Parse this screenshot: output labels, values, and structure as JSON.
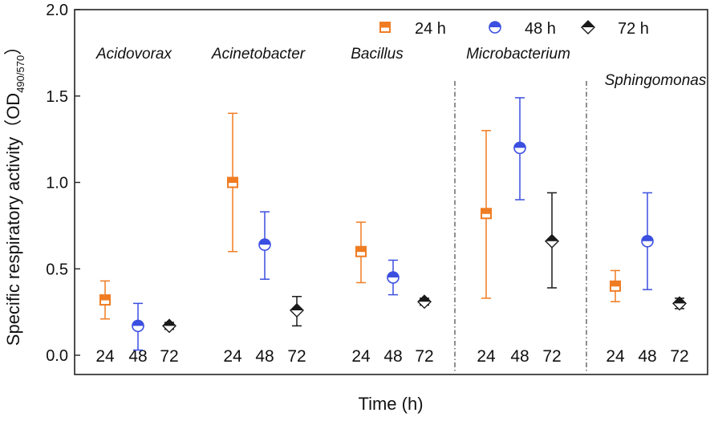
{
  "chart_data": {
    "type": "scatter",
    "ylabel": "Specific respiratory activity（OD",
    "ylabel_sub": "490/570",
    "ylabel_close": "）",
    "xlabel": "Time (h)",
    "ylim": [
      0,
      2.0
    ],
    "yticks": [
      "0.0",
      "0.5",
      "1.0",
      "1.5",
      "2.0"
    ],
    "legend": [
      {
        "name": "24 h",
        "color": "#f07c22",
        "marker": "square"
      },
      {
        "name": "48 h",
        "color": "#3b4fe0",
        "marker": "circle"
      },
      {
        "name": "72 h",
        "color": "#1a1a1a",
        "marker": "diamond"
      }
    ],
    "groups": [
      {
        "genus": "Acidovorax",
        "points": [
          {
            "time": "24",
            "value": 0.32,
            "low": 0.21,
            "high": 0.43
          },
          {
            "time": "48",
            "value": 0.17,
            "low": 0.03,
            "high": 0.3
          },
          {
            "time": "72",
            "value": 0.17,
            "low": 0.15,
            "high": 0.19
          }
        ]
      },
      {
        "genus": "Acinetobacter",
        "points": [
          {
            "time": "24",
            "value": 1.0,
            "low": 0.6,
            "high": 1.4
          },
          {
            "time": "48",
            "value": 0.64,
            "low": 0.44,
            "high": 0.83
          },
          {
            "time": "72",
            "value": 0.26,
            "low": 0.17,
            "high": 0.34
          }
        ]
      },
      {
        "genus": "Bacillus",
        "points": [
          {
            "time": "24",
            "value": 0.6,
            "low": 0.42,
            "high": 0.77
          },
          {
            "time": "48",
            "value": 0.45,
            "low": 0.35,
            "high": 0.55
          },
          {
            "time": "72",
            "value": 0.31,
            "low": 0.29,
            "high": 0.33
          }
        ]
      },
      {
        "genus": "Microbacterium",
        "points": [
          {
            "time": "24",
            "value": 0.82,
            "low": 0.33,
            "high": 1.3
          },
          {
            "time": "48",
            "value": 1.2,
            "low": 0.9,
            "high": 1.49
          },
          {
            "time": "72",
            "value": 0.66,
            "low": 0.39,
            "high": 0.94
          }
        ]
      },
      {
        "genus": "Sphingomonas",
        "points": [
          {
            "time": "24",
            "value": 0.4,
            "low": 0.31,
            "high": 0.49
          },
          {
            "time": "48",
            "value": 0.66,
            "low": 0.38,
            "high": 0.94
          },
          {
            "time": "72",
            "value": 0.3,
            "low": 0.27,
            "high": 0.33
          }
        ]
      }
    ]
  }
}
